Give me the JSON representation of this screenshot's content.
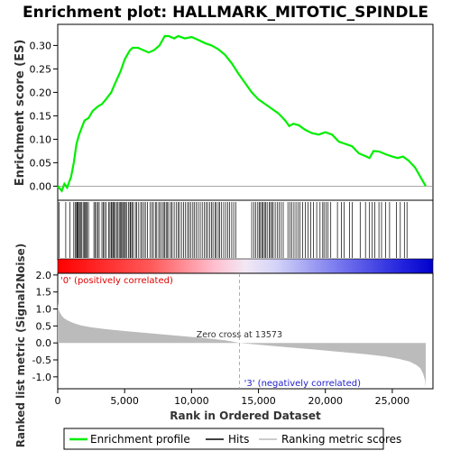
{
  "chart_data": {
    "title": "Enrichment plot: HALLMARK_MITOTIC_SPINDLE",
    "x_label": "Rank in Ordered Dataset",
    "x_range": [
      0,
      27500
    ],
    "x_ticks": [
      "0",
      "5,000",
      "10,000",
      "15,000",
      "20,000",
      "25,000"
    ],
    "x_tick_values": [
      0,
      5000,
      10000,
      15000,
      20000,
      25000
    ],
    "es_panel": {
      "type": "line",
      "y_label": "Enrichment score (ES)",
      "ylim": [
        -0.03,
        0.345
      ],
      "y_ticks": [
        "0.00",
        "0.05",
        "0.10",
        "0.15",
        "0.20",
        "0.25",
        "0.30"
      ],
      "y_tick_values": [
        0,
        0.05,
        0.1,
        0.15,
        0.2,
        0.25,
        0.3
      ],
      "series_color": "#00ee00",
      "x": [
        0,
        300,
        500,
        700,
        1000,
        1200,
        1400,
        1600,
        1800,
        2000,
        2300,
        2600,
        3000,
        3300,
        3600,
        4000,
        4300,
        4700,
        5000,
        5200,
        5400,
        5600,
        6000,
        6400,
        6800,
        7200,
        7600,
        8000,
        8300,
        8700,
        9000,
        9500,
        10000,
        10500,
        11000,
        11500,
        12000,
        12500,
        13000,
        13500,
        14000,
        14500,
        15000,
        15500,
        16000,
        16500,
        17000,
        17300,
        17600,
        18000,
        18500,
        19000,
        19500,
        20000,
        20500,
        21000,
        21500,
        22000,
        22500,
        23000,
        23300,
        23600,
        24000,
        24500,
        25000,
        25400,
        25800,
        26200,
        26700,
        27200,
        27500
      ],
      "y": [
        0.0,
        -0.01,
        0.005,
        -0.003,
        0.02,
        0.05,
        0.09,
        0.11,
        0.125,
        0.14,
        0.145,
        0.16,
        0.17,
        0.175,
        0.185,
        0.2,
        0.22,
        0.245,
        0.27,
        0.28,
        0.29,
        0.295,
        0.295,
        0.29,
        0.285,
        0.29,
        0.3,
        0.32,
        0.32,
        0.315,
        0.32,
        0.315,
        0.318,
        0.312,
        0.305,
        0.3,
        0.292,
        0.28,
        0.262,
        0.24,
        0.22,
        0.2,
        0.185,
        0.175,
        0.165,
        0.155,
        0.14,
        0.128,
        0.133,
        0.13,
        0.12,
        0.113,
        0.11,
        0.115,
        0.11,
        0.095,
        0.09,
        0.085,
        0.07,
        0.064,
        0.06,
        0.075,
        0.074,
        0.068,
        0.063,
        0.06,
        0.063,
        0.055,
        0.04,
        0.015,
        0.0
      ]
    },
    "hits_panel": {
      "hit_ranks": [
        100,
        600,
        900,
        1200,
        1300,
        1400,
        1450,
        1500,
        1550,
        1650,
        1700,
        1800,
        1900,
        2000,
        2050,
        2150,
        2200,
        2300,
        2700,
        2800,
        2900,
        3000,
        3100,
        3300,
        3400,
        3500,
        3600,
        3800,
        3900,
        4000,
        4050,
        4150,
        4200,
        4300,
        4400,
        4500,
        4600,
        4700,
        4750,
        4850,
        4900,
        5000,
        5050,
        5150,
        5300,
        5400,
        5450,
        5550,
        5650,
        5800,
        5900,
        6050,
        6200,
        6300,
        6450,
        6550,
        6700,
        6900,
        7050,
        7150,
        7300,
        7400,
        7550,
        7650,
        7800,
        7900,
        8000,
        8100,
        8200,
        8300,
        8450,
        8550,
        8700,
        8850,
        9000,
        9100,
        9250,
        9400,
        9550,
        9700,
        9800,
        9950,
        10100,
        10200,
        10350,
        10500,
        10650,
        10800,
        10950,
        11100,
        11200,
        11350,
        11500,
        11600,
        11750,
        11850,
        12000,
        12100,
        12250,
        12400,
        12550,
        12700,
        12850,
        13000,
        13150,
        13300,
        14500,
        14650,
        14800,
        14950,
        15050,
        15150,
        15250,
        15350,
        15450,
        15550,
        15650,
        15800,
        15900,
        16000,
        16100,
        16250,
        16400,
        16550,
        16700,
        16850,
        17200,
        17350,
        17500,
        17650,
        17800,
        17950,
        18100,
        18300,
        18500,
        18700,
        18900,
        19100,
        19350,
        19600,
        19800,
        19900,
        20050,
        20200,
        20400,
        20900,
        21200,
        21400,
        21800,
        22000,
        22600,
        23000,
        23300,
        23500,
        23700,
        24000,
        24200,
        24500,
        24800,
        25300,
        25600,
        25900,
        26100
      ]
    },
    "ranking_panel": {
      "type": "area",
      "y_label": "Ranked list metric (Signal2Noise)",
      "ylim": [
        -1.35,
        2.05
      ],
      "y_ticks": [
        "-1.0",
        "-0.5",
        "0.0",
        "0.5",
        "1.0",
        "1.5",
        "2.0"
      ],
      "y_tick_values": [
        -1.0,
        -0.5,
        0.0,
        0.5,
        1.0,
        1.5,
        2.0
      ],
      "x": [
        0,
        50,
        150,
        300,
        500,
        800,
        1200,
        1700,
        2500,
        3500,
        5000,
        7000,
        9000,
        11000,
        12500,
        13573,
        15000,
        17000,
        19000,
        21000,
        23000,
        24500,
        25500,
        26300,
        26800,
        27100,
        27300,
        27450,
        27500
      ],
      "y": [
        1.2,
        1.0,
        0.9,
        0.8,
        0.72,
        0.65,
        0.58,
        0.52,
        0.46,
        0.41,
        0.35,
        0.28,
        0.21,
        0.14,
        0.08,
        0.0,
        -0.05,
        -0.12,
        -0.19,
        -0.26,
        -0.33,
        -0.4,
        -0.47,
        -0.55,
        -0.65,
        -0.75,
        -0.9,
        -1.1,
        -1.3
      ],
      "zero_cross_label": "Zero cross at 13573",
      "zero_cross_x": 13573,
      "pos_label": "'0' (positively correlated)",
      "neg_label": "'3' (negatively correlated)",
      "pos_color": "#ff0000",
      "neg_color": "#0000ff"
    },
    "legend": [
      {
        "label": "Enrichment profile",
        "color": "#00ee00"
      },
      {
        "label": "Hits",
        "color": "#000000"
      },
      {
        "label": "Ranking metric scores",
        "color": "#bbbbbb"
      }
    ]
  }
}
